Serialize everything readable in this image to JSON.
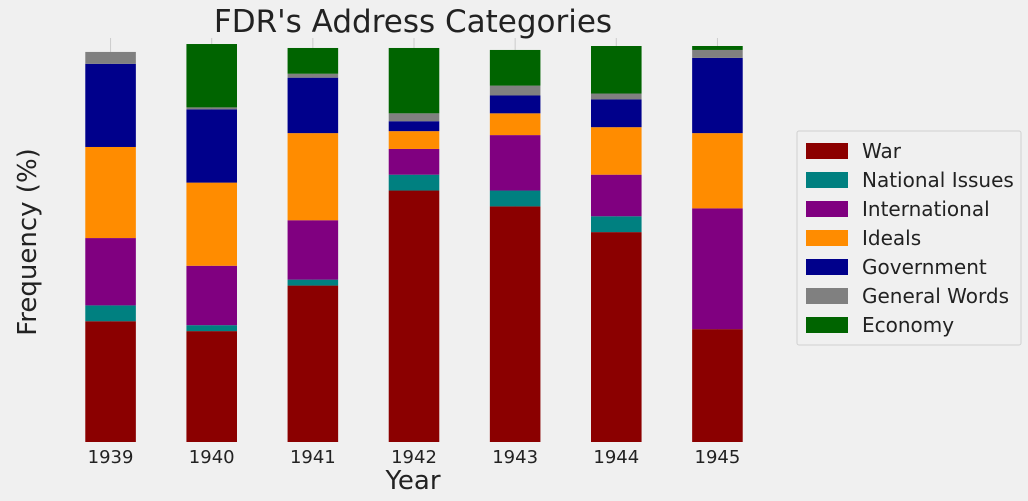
{
  "chart_data": {
    "type": "bar",
    "stacked": true,
    "title": "FDR's Address Categories",
    "xlabel": "Year",
    "ylabel": "Frequency (%)",
    "ylim": [
      0,
      100
    ],
    "grid": true,
    "legend_position": "right",
    "categories": [
      "1939",
      "1940",
      "1941",
      "1942",
      "1943",
      "1944",
      "1945"
    ],
    "series": [
      {
        "name": "War",
        "color": "#8b0000",
        "values": [
          30.5,
          28.0,
          39.5,
          63.5,
          59.5,
          53.0,
          28.5
        ]
      },
      {
        "name": "National Issues",
        "color": "#008080",
        "values": [
          4.0,
          1.5,
          1.5,
          4.0,
          4.0,
          4.0,
          0.0
        ]
      },
      {
        "name": "International",
        "color": "#800080",
        "values": [
          17.0,
          15.0,
          15.0,
          6.5,
          14.0,
          10.5,
          30.5
        ]
      },
      {
        "name": "Ideals",
        "color": "#ff8c00",
        "values": [
          23.0,
          21.0,
          22.0,
          4.5,
          5.5,
          12.0,
          19.0
        ]
      },
      {
        "name": "Government",
        "color": "#00008b",
        "values": [
          21.0,
          18.5,
          14.0,
          2.5,
          4.5,
          7.0,
          19.0
        ]
      },
      {
        "name": "General Words",
        "color": "#808080",
        "values": [
          3.0,
          0.5,
          1.0,
          2.0,
          2.5,
          1.5,
          2.0
        ]
      },
      {
        "name": "Economy",
        "color": "#006400",
        "values": [
          0.0,
          16.0,
          6.5,
          16.5,
          9.0,
          12.0,
          1.0
        ]
      }
    ]
  }
}
